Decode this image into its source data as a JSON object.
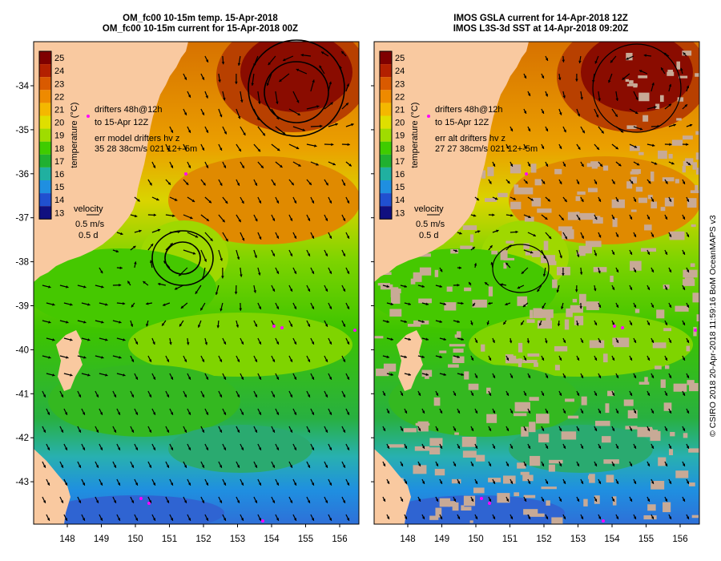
{
  "left_panel": {
    "title_line1": "OM_fc00 10-15m temp. 15-Apr-2018",
    "title_line2": "OM_fc00 10-15m current for 15-Apr-2018 00Z",
    "annotation_line1": "drifters 48h@12h",
    "annotation_line2": "to 15-Apr 12Z",
    "annotation_line3": "err model drifters hv z",
    "annotation_line4": "35 28 38cm/s 021 12+-5m",
    "velocity_label": "velocity",
    "velocity_scale": "0.5 m/s",
    "velocity_time": "0.5 d"
  },
  "right_panel": {
    "title_line1": "IMOS GSLA current for 14-Apr-2018 12Z",
    "title_line2": "IMOS L3S-3d SST at 14-Apr-2018 09:20Z",
    "annotation_line1": "drifters 48h@12h",
    "annotation_line2": "to 15-Apr 12Z",
    "annotation_line3": "err alt drifters hv z",
    "annotation_line4": "27 27 38cm/s 021 12+-5m",
    "velocity_label": "velocity",
    "velocity_scale": "0.5 m/s",
    "velocity_time": "0.5 d"
  },
  "colorbar": {
    "title": "temperature (°C)",
    "ticks": [
      "25",
      "24",
      "23",
      "22",
      "21",
      "20",
      "19",
      "18",
      "17",
      "16",
      "15",
      "14",
      "13"
    ],
    "colors": [
      "#7f0000",
      "#b32000",
      "#d95a00",
      "#ee8a00",
      "#f4b800",
      "#dfdf00",
      "#9fdc00",
      "#3fcc00",
      "#20b030",
      "#20b0a0",
      "#1f8fe0",
      "#2050d0",
      "#101080"
    ]
  },
  "axes": {
    "latitude_ticks": [
      "-34",
      "-35",
      "-36",
      "-37",
      "-38",
      "-39",
      "-40",
      "-41",
      "-42",
      "-43"
    ],
    "longitude_ticks": [
      "148",
      "149",
      "150",
      "151",
      "152",
      "153",
      "154",
      "155",
      "156"
    ]
  },
  "credit": "© CSIRO 2018  20-Apr-2018 11:59:16 BoM OceanMAPS v3",
  "colors": {
    "land": "#f9c9a0",
    "no_data": "#c8aa96",
    "drifter": "#ff00ff"
  }
}
